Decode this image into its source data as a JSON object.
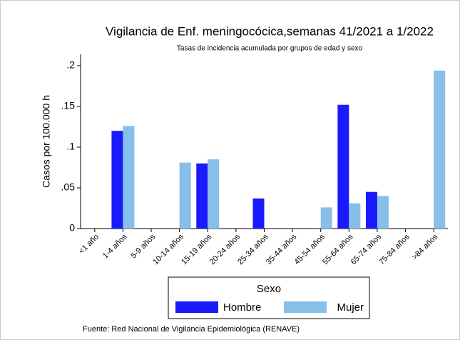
{
  "chart_data": {
    "type": "bar",
    "title": "Vigilancia de Enf. meningocócica,semanas 41/2021 a 1/2022",
    "subtitle": "Tasas de incidencia acumulada por grupos de edad y sexo",
    "y_label": "Casos por 100.000 h",
    "source": "Fuente: Red Nacional de Vigilancia Epidemiológica (RENAVE)",
    "legend_title": "Sexo",
    "categories": [
      "<1 año",
      "1-4 años",
      "5-9 años",
      "10-14 años",
      "15-19 años",
      "20-24 años",
      "25-34 años",
      "35-44 años",
      "45-54 años",
      "55-64 años",
      "65-74 años",
      "75-84 años",
      ">84 años"
    ],
    "series": [
      {
        "name": "Hombre",
        "color": "#1a1aff",
        "values": [
          0,
          0.12,
          0,
          0,
          0.08,
          0,
          0.037,
          0,
          0,
          0.152,
          0.045,
          0,
          0
        ]
      },
      {
        "name": "Mujer",
        "color": "#87bfe8",
        "values": [
          0,
          0.126,
          0,
          0.081,
          0.085,
          0,
          0,
          0,
          0.026,
          0.031,
          0.04,
          0,
          0.194
        ]
      }
    ],
    "ylim": [
      0,
      0.2
    ],
    "yticks": [
      0,
      {
        "value": 0.05,
        "label": ".05"
      },
      {
        "value": 0.1,
        "label": ".1"
      },
      {
        "value": 0.15,
        "label": ".15"
      },
      {
        "value": 0.2,
        "label": ".2"
      }
    ],
    "grid": false
  }
}
